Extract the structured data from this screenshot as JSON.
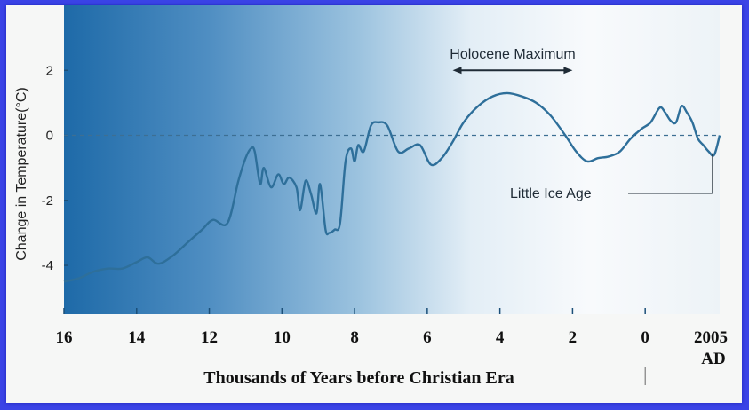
{
  "chart_data": {
    "type": "line",
    "title": "",
    "xlabel": "Thousands of Years before Christian Era",
    "ylabel": "Change in Temperature(°C)",
    "xlim": [
      16,
      -2.05
    ],
    "ylim": [
      -5.5,
      4
    ],
    "x_ticks": [
      16,
      14,
      12,
      10,
      8,
      6,
      4,
      2,
      0
    ],
    "x_tick_labels": [
      "16",
      "14",
      "12",
      "10",
      "8",
      "6",
      "4",
      "2",
      "0"
    ],
    "x_end_label": "2005",
    "x_end_sublabel": "AD",
    "y_ticks": [
      2,
      0,
      -2,
      -4
    ],
    "y_tick_labels": [
      "2",
      "0",
      "-2",
      "-4"
    ],
    "baseline": 0,
    "grid": false,
    "series": [
      {
        "color": "#2e6f9a",
        "x": [
          16,
          15.6,
          15.2,
          14.8,
          14.4,
          14,
          13.7,
          13.4,
          13,
          12.6,
          12.2,
          11.9,
          11.5,
          11.2,
          11,
          10.85,
          10.75,
          10.6,
          10.5,
          10.3,
          10.1,
          9.95,
          9.8,
          9.6,
          9.5,
          9.35,
          9.2,
          9.05,
          8.95,
          8.8,
          8.7,
          8.55,
          8.4,
          8.25,
          8.1,
          8,
          7.9,
          7.75,
          7.55,
          7.35,
          7.1,
          6.8,
          6.5,
          6.2,
          5.9,
          5.6,
          5.3,
          5,
          4.6,
          4.2,
          3.8,
          3.4,
          3,
          2.6,
          2.2,
          1.9,
          1.6,
          1.3,
          1,
          0.7,
          0.4,
          0.1,
          -0.15,
          -0.4,
          -0.55,
          -0.7,
          -0.85,
          -1,
          -1.15,
          -1.3,
          -1.45,
          -1.6,
          -1.75,
          -1.9,
          -2.05
        ],
        "y": [
          -4.5,
          -4.4,
          -4.2,
          -4.1,
          -4.1,
          -3.9,
          -3.75,
          -3.95,
          -3.7,
          -3.3,
          -2.9,
          -2.6,
          -2.7,
          -1.4,
          -0.7,
          -0.4,
          -0.5,
          -1.5,
          -1.0,
          -1.6,
          -1.2,
          -1.5,
          -1.3,
          -1.6,
          -2.3,
          -1.4,
          -1.8,
          -2.4,
          -1.5,
          -2.9,
          -3.0,
          -2.9,
          -2.7,
          -0.8,
          -0.4,
          -0.8,
          -0.3,
          -0.5,
          0.3,
          0.4,
          0.3,
          -0.5,
          -0.4,
          -0.3,
          -0.9,
          -0.7,
          -0.2,
          0.4,
          0.9,
          1.2,
          1.3,
          1.2,
          1.0,
          0.6,
          0.0,
          -0.5,
          -0.8,
          -0.7,
          -0.65,
          -0.5,
          -0.1,
          0.2,
          0.4,
          0.85,
          0.7,
          0.45,
          0.4,
          0.9,
          0.7,
          0.4,
          -0.1,
          -0.3,
          -0.5,
          -0.6,
          0.0
        ]
      }
    ],
    "annotations": [
      {
        "text": "Holocene Maximum",
        "arrow_from": 5.3,
        "arrow_to": 2.0,
        "arrow_y": 2.0
      },
      {
        "text": "Little Ice Age",
        "points_to_x": -1.85
      }
    ]
  }
}
